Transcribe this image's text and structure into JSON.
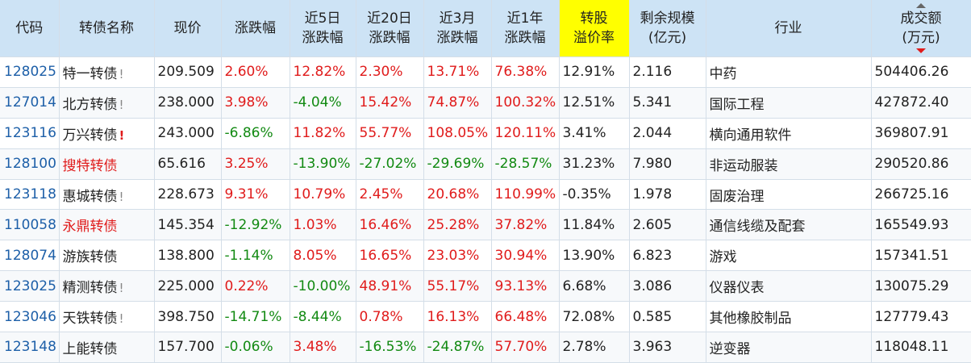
{
  "headers": {
    "code": "代码",
    "name": "转债名称",
    "price": "现价",
    "change": "涨跌幅",
    "d5": [
      "近5日",
      "涨跌幅"
    ],
    "d20": [
      "近20日",
      "涨跌幅"
    ],
    "m3": [
      "近3月",
      "涨跌幅"
    ],
    "y1": [
      "近1年",
      "涨跌幅"
    ],
    "premium": [
      "转股",
      "溢价率"
    ],
    "remaining": [
      "剩余规模",
      "(亿元)"
    ],
    "industry": "行业",
    "volume": [
      "成交额",
      "(万元)"
    ]
  },
  "colors": {
    "up": "#e01b1b",
    "down": "#128a12",
    "header_bg": "#cde3f5",
    "highlight_header": "#ffff00",
    "code": "#1d5fa8"
  },
  "rows": [
    {
      "code": "128025",
      "name": "特一转债",
      "flag": "!",
      "flag_strong": false,
      "name_red": false,
      "price": "209.509",
      "change": "2.60%",
      "d5": "12.82%",
      "d20": "2.30%",
      "m3": "13.71%",
      "y1": "76.38%",
      "premium": "12.91%",
      "remaining": "2.116",
      "industry": "中药",
      "volume": "504406.26"
    },
    {
      "code": "127014",
      "name": "北方转债",
      "flag": "!",
      "flag_strong": false,
      "name_red": false,
      "price": "238.000",
      "change": "3.98%",
      "d5": "-4.04%",
      "d20": "15.42%",
      "m3": "74.87%",
      "y1": "100.32%",
      "premium": "12.51%",
      "remaining": "5.341",
      "industry": "国际工程",
      "volume": "427872.40"
    },
    {
      "code": "123116",
      "name": "万兴转债",
      "flag": "!",
      "flag_strong": true,
      "name_red": false,
      "price": "243.000",
      "change": "-6.86%",
      "d5": "11.82%",
      "d20": "55.77%",
      "m3": "108.05%",
      "y1": "120.11%",
      "premium": "3.41%",
      "remaining": "2.044",
      "industry": "横向通用软件",
      "volume": "369807.91"
    },
    {
      "code": "128100",
      "name": "搜特转债",
      "flag": "",
      "flag_strong": false,
      "name_red": true,
      "price": "65.616",
      "change": "3.25%",
      "d5": "-13.90%",
      "d20": "-27.02%",
      "m3": "-29.69%",
      "y1": "-28.57%",
      "premium": "31.23%",
      "remaining": "7.980",
      "industry": "非运动服装",
      "volume": "290520.86"
    },
    {
      "code": "123118",
      "name": "惠城转债",
      "flag": "!",
      "flag_strong": false,
      "name_red": false,
      "price": "228.673",
      "change": "9.31%",
      "d5": "10.79%",
      "d20": "2.45%",
      "m3": "20.68%",
      "y1": "110.99%",
      "premium": "-0.35%",
      "remaining": "1.978",
      "industry": "固废治理",
      "volume": "266725.16"
    },
    {
      "code": "110058",
      "name": "永鼎转债",
      "flag": "",
      "flag_strong": false,
      "name_red": true,
      "price": "145.354",
      "change": "-12.92%",
      "d5": "1.03%",
      "d20": "16.46%",
      "m3": "25.28%",
      "y1": "37.82%",
      "premium": "11.84%",
      "remaining": "2.605",
      "industry": "通信线缆及配套",
      "volume": "165549.93"
    },
    {
      "code": "128074",
      "name": "游族转债",
      "flag": "",
      "flag_strong": false,
      "name_red": false,
      "price": "138.800",
      "change": "-1.14%",
      "d5": "8.05%",
      "d20": "16.65%",
      "m3": "23.03%",
      "y1": "30.94%",
      "premium": "13.90%",
      "remaining": "6.823",
      "industry": "游戏",
      "volume": "157341.51"
    },
    {
      "code": "123025",
      "name": "精测转债",
      "flag": "!",
      "flag_strong": false,
      "name_red": false,
      "price": "225.000",
      "change": "0.22%",
      "d5": "-10.00%",
      "d20": "48.91%",
      "m3": "55.17%",
      "y1": "93.13%",
      "premium": "6.68%",
      "remaining": "3.086",
      "industry": "仪器仪表",
      "volume": "130075.29"
    },
    {
      "code": "123046",
      "name": "天铁转债",
      "flag": "!",
      "flag_strong": false,
      "name_red": false,
      "price": "398.750",
      "change": "-14.71%",
      "d5": "-8.44%",
      "d20": "0.78%",
      "m3": "16.13%",
      "y1": "66.48%",
      "premium": "72.08%",
      "remaining": "0.585",
      "industry": "其他橡胶制品",
      "volume": "127779.43"
    },
    {
      "code": "123148",
      "name": "上能转债",
      "flag": "",
      "flag_strong": false,
      "name_red": false,
      "price": "157.700",
      "change": "-0.06%",
      "d5": "3.48%",
      "d20": "-16.53%",
      "m3": "-24.87%",
      "y1": "57.70%",
      "premium": "2.78%",
      "remaining": "3.963",
      "industry": "逆变器",
      "volume": "118048.11"
    }
  ]
}
